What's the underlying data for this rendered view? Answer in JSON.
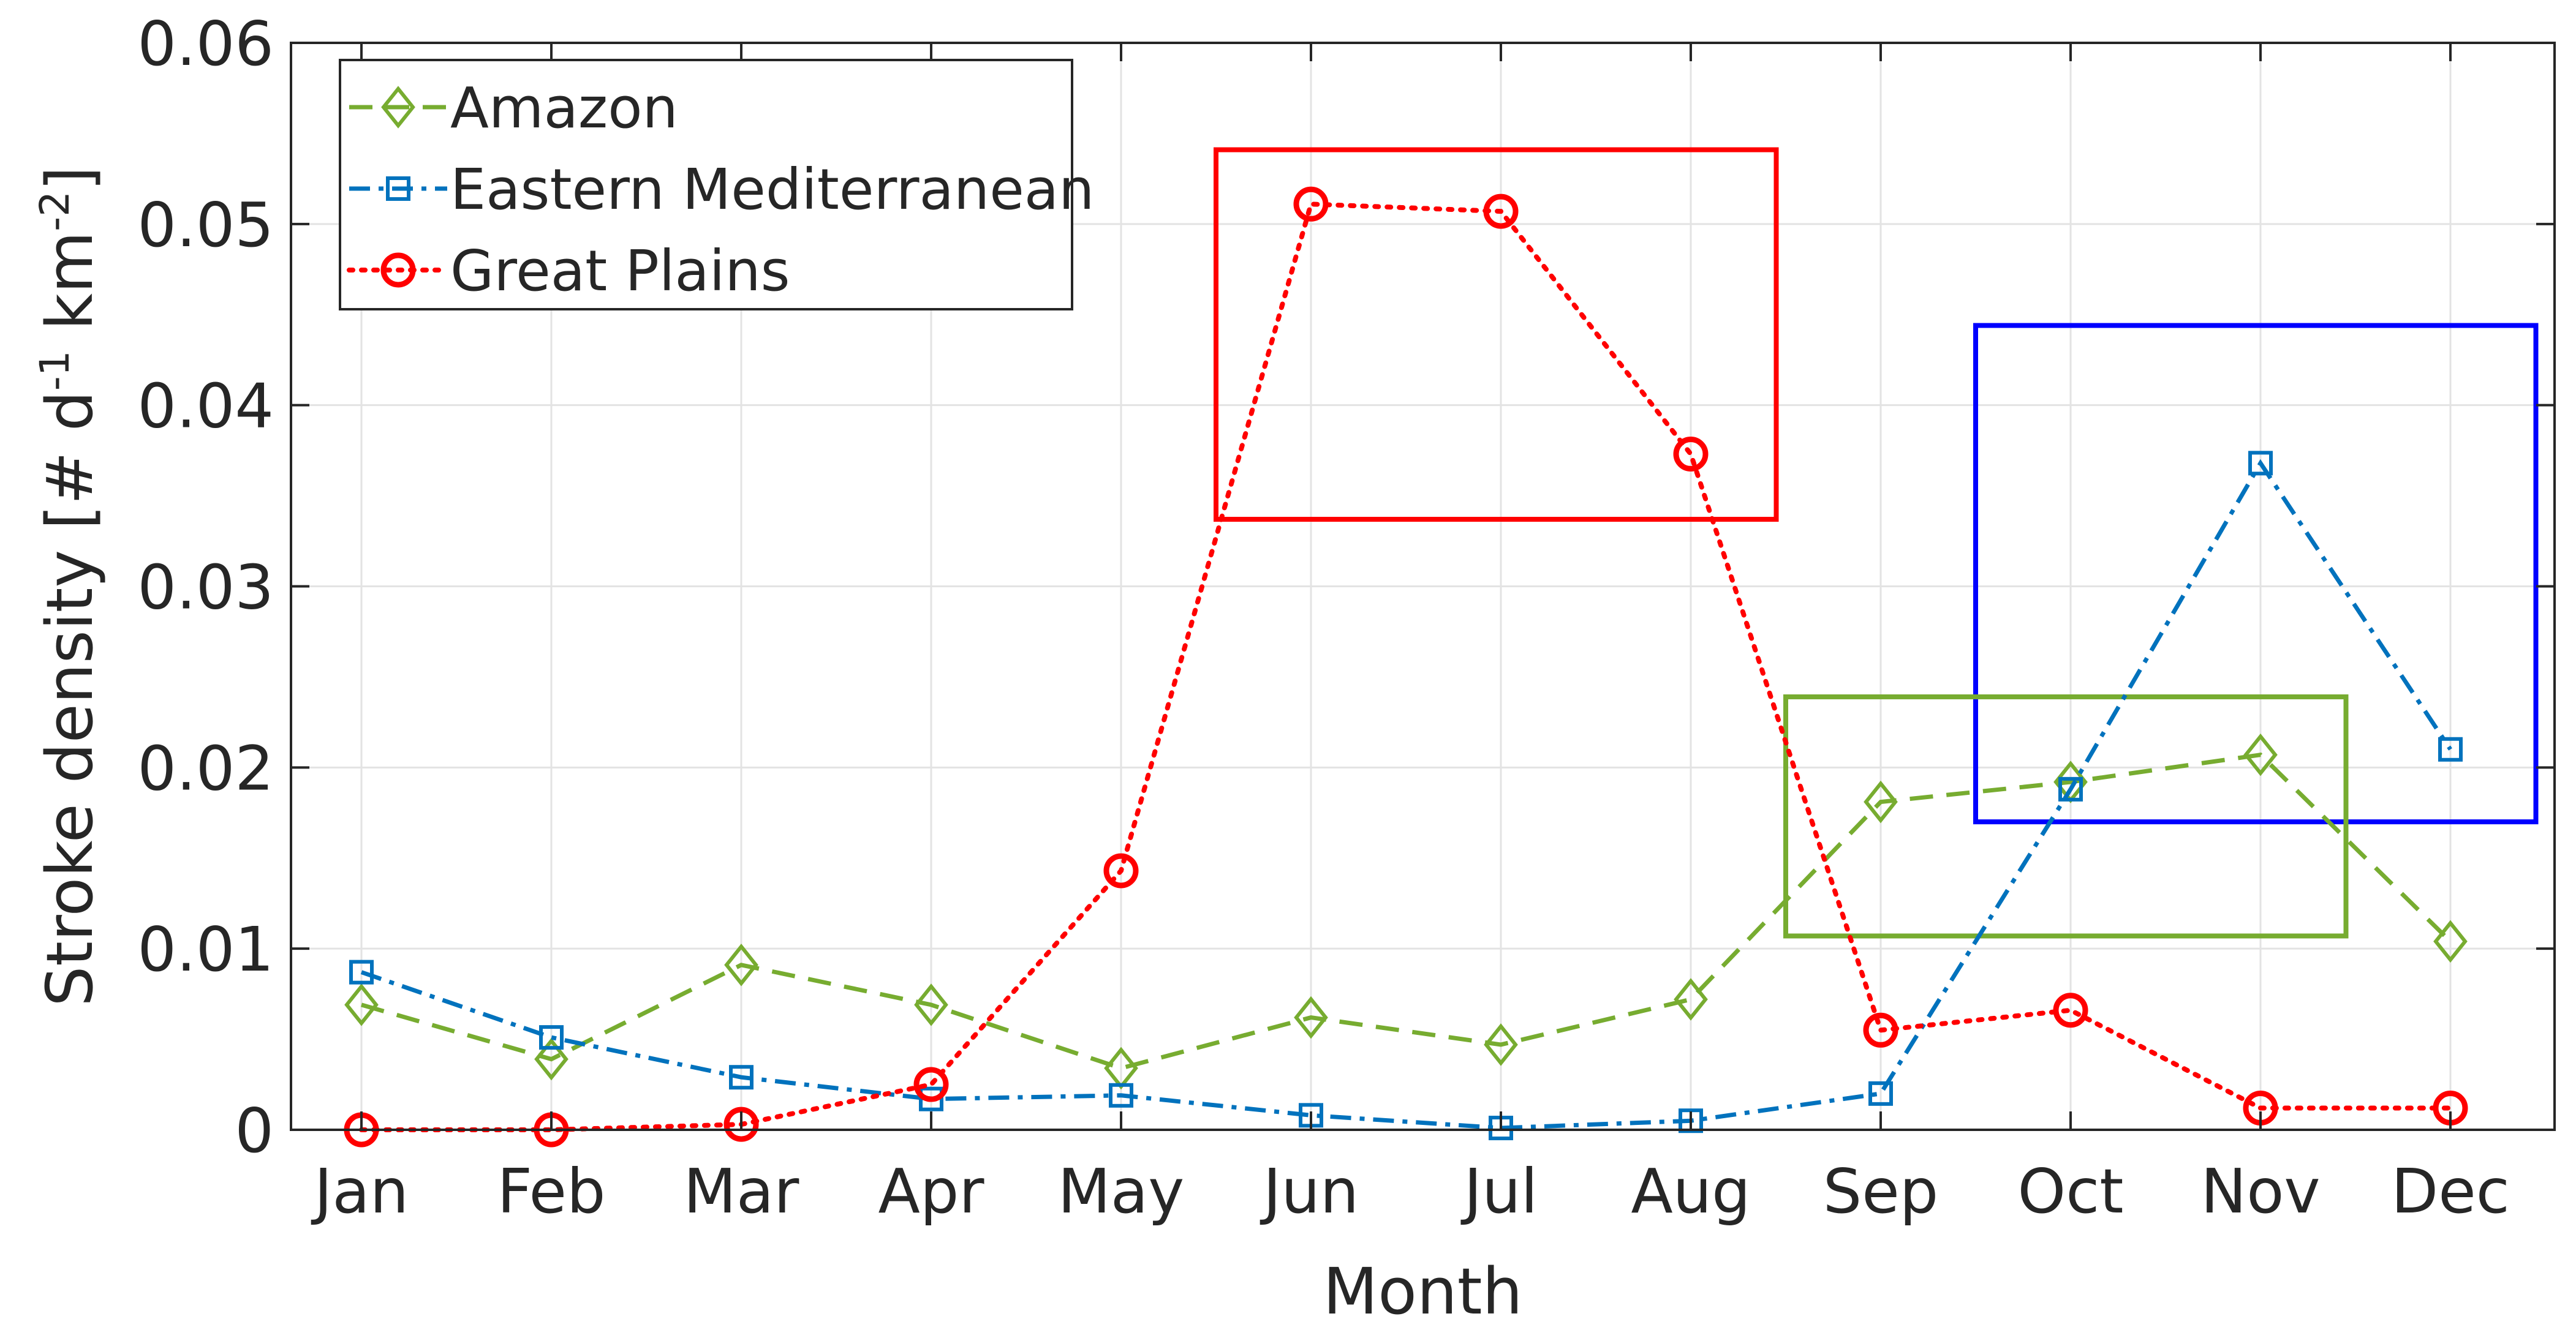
{
  "chart_data": {
    "type": "line",
    "xlabel": "Month",
    "ylabel": {
      "prefix": "Stroke  density  [#  d",
      "sup1": "-1",
      "mid": "  km",
      "sup2": "-2",
      "suffix": "]"
    },
    "categories": [
      "Jan",
      "Feb",
      "Mar",
      "Apr",
      "May",
      "Jun",
      "Jul",
      "Aug",
      "Sep",
      "Oct",
      "Nov",
      "Dec"
    ],
    "ylim": [
      0,
      0.06
    ],
    "yticks": [
      0,
      0.01,
      0.02,
      0.03,
      0.04,
      0.05,
      0.06
    ],
    "ytick_labels": [
      "0",
      "0.01",
      "0.02",
      "0.03",
      "0.04",
      "0.05",
      "0.06"
    ],
    "grid": true,
    "legend_position": "top-left",
    "series": [
      {
        "name": "Amazon",
        "color": "#77ac30",
        "line_style": "dashed",
        "marker": "diamond",
        "values": [
          0.0069,
          0.0039,
          0.0091,
          0.0069,
          0.0034,
          0.0062,
          0.0047,
          0.0072,
          0.0181,
          0.0192,
          0.0207,
          0.0104
        ]
      },
      {
        "name": "Eastern Mediterranean",
        "color": "#0072bd",
        "line_style": "dash-dot",
        "marker": "square",
        "values": [
          0.0087,
          0.0051,
          0.0029,
          0.0017,
          0.0019,
          0.0008,
          0.0001,
          0.0005,
          0.002,
          0.0188,
          0.0368,
          0.021
        ]
      },
      {
        "name": "Great Plains",
        "color": "#ff0000",
        "line_style": "dotted",
        "marker": "circle",
        "values": [
          0.0,
          0.0,
          0.0003,
          0.0025,
          0.0143,
          0.0511,
          0.0507,
          0.0373,
          0.0055,
          0.0066,
          0.0012,
          0.0012
        ]
      }
    ],
    "highlight_boxes": [
      {
        "color": "#ff0000",
        "x_range": [
          "May",
          "Aug"
        ],
        "y_range": [
          0.0337,
          0.0541
        ]
      },
      {
        "color": "#0000ff",
        "x_range": [
          "Sep",
          "Dec"
        ],
        "y_range": [
          0.017,
          0.0444
        ]
      },
      {
        "color": "#77ac30",
        "x_range": [
          "Aug",
          "Nov"
        ],
        "y_range": [
          0.0107,
          0.0239
        ]
      }
    ]
  }
}
